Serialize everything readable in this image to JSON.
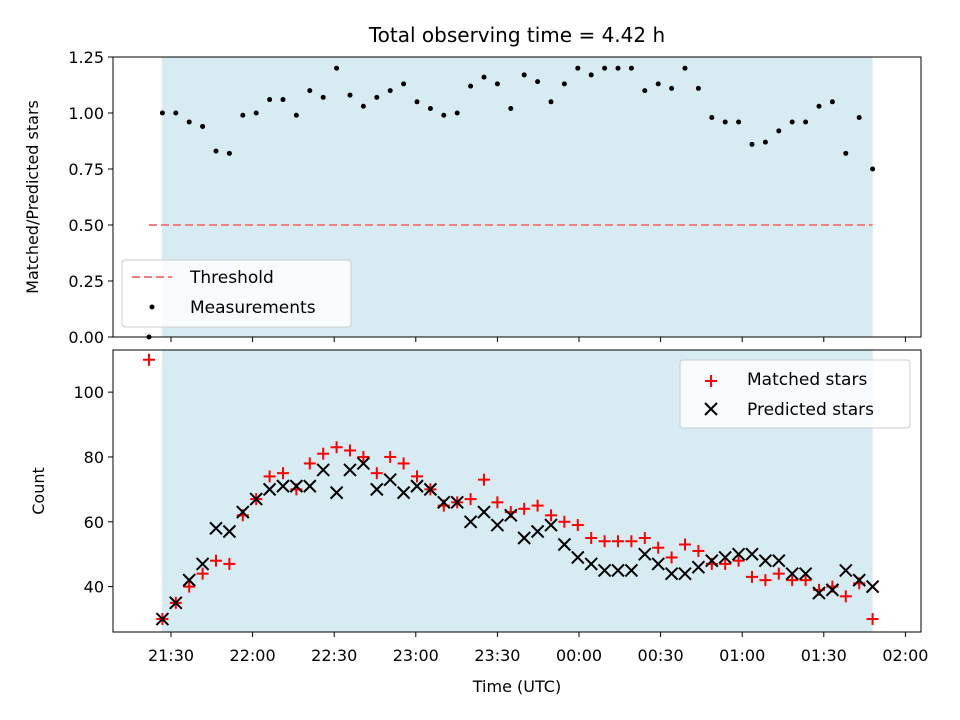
{
  "chart_data": {
    "type": "scatter",
    "title": "Total observing time = 4.42 h",
    "xlabel": "Time (UTC)",
    "x_ticks": [
      "21:30",
      "22:00",
      "22:30",
      "23:00",
      "23:30",
      "00:00",
      "00:30",
      "01:00",
      "01:30",
      "02:00"
    ],
    "shaded_color": "#add8e6",
    "panels": [
      {
        "name": "ratio",
        "ylabel": "Matched/Predicted stars",
        "ylim": [
          0,
          1.25
        ],
        "y_ticks": [
          "0.00",
          "0.25",
          "0.50",
          "0.75",
          "1.00",
          "1.25"
        ],
        "legend_position": "lower-left",
        "threshold": {
          "name": "Threshold",
          "value": 0.5,
          "color": "#f08080"
        },
        "series": [
          {
            "name": "Measurements",
            "color": "#000000",
            "values": [
              0,
              1.0,
              1.0,
              0.96,
              0.94,
              0.83,
              0.82,
              0.99,
              1.0,
              1.06,
              1.06,
              0.99,
              1.1,
              1.07,
              1.2,
              1.08,
              1.03,
              1.07,
              1.1,
              1.13,
              1.05,
              1.02,
              0.99,
              1.0,
              1.12,
              1.16,
              1.13,
              1.02,
              1.17,
              1.14,
              1.05,
              1.13,
              1.2,
              1.17,
              1.2,
              1.2,
              1.2,
              1.1,
              1.13,
              1.11,
              1.2,
              1.11,
              0.98,
              0.96,
              0.96,
              0.86,
              0.87,
              0.92,
              0.96,
              0.96,
              1.03,
              1.05,
              0.82,
              0.98,
              0.75
            ]
          }
        ]
      },
      {
        "name": "count",
        "ylabel": "Count",
        "ylim": [
          26,
          113
        ],
        "y_ticks": [
          "40",
          "60",
          "80",
          "100"
        ],
        "legend_position": "upper-right",
        "series": [
          {
            "name": "Matched stars",
            "color": "#ff0000",
            "marker": "+",
            "values": [
              110,
              30,
              35,
              40,
              44,
              48,
              47,
              62,
              67,
              74,
              75,
              70,
              78,
              81,
              83,
              82,
              80,
              75,
              80,
              78,
              74,
              70,
              65,
              66,
              67,
              73,
              66,
              63,
              64,
              65,
              62,
              60,
              59,
              55,
              54,
              54,
              54,
              55,
              52,
              49,
              53,
              51,
              47,
              47,
              48,
              43,
              42,
              44,
              42,
              42,
              39,
              40,
              37,
              41,
              30
            ]
          },
          {
            "name": "Predicted stars",
            "color": "#000000",
            "marker": "x",
            "values": [
              null,
              30,
              35,
              42,
              47,
              58,
              57,
              63,
              67,
              70,
              71,
              71,
              71,
              76,
              69,
              76,
              78,
              70,
              73,
              69,
              71,
              70,
              66,
              66,
              60,
              63,
              59,
              62,
              55,
              57,
              59,
              53,
              49,
              47,
              45,
              45,
              45,
              50,
              47,
              44,
              44,
              46,
              48,
              49,
              50,
              50,
              48,
              48,
              44,
              44,
              38,
              39,
              45,
              42,
              40
            ]
          }
        ]
      }
    ]
  }
}
